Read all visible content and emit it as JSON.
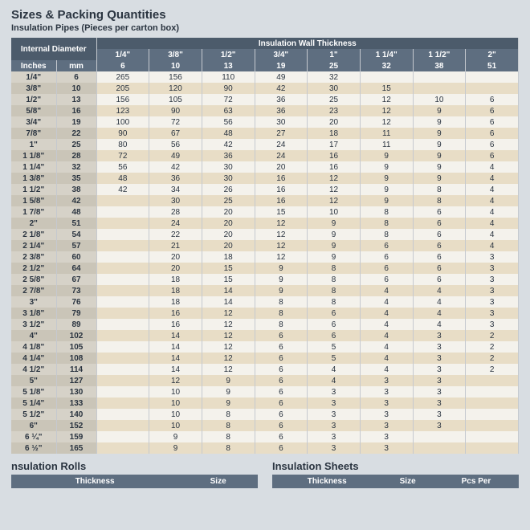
{
  "title": "Sizes & Packing Quantities",
  "subtitle": "Insulation Pipes (Pieces per carton box)",
  "colgroup1_label": "Internal Diameter",
  "colgroup2_label": "Insulation Wall Thickness",
  "sub_headers_left": [
    "Inches",
    "mm"
  ],
  "thickness_inches": [
    "1/4\"",
    "3/8\"",
    "1/2\"",
    "3/4\"",
    "1\"",
    "1 1/4\"",
    "1 1/2\"",
    "2\""
  ],
  "thickness_mm": [
    "6",
    "10",
    "13",
    "19",
    "25",
    "32",
    "38",
    "51"
  ],
  "rows": [
    {
      "in": "1/4\"",
      "mm": "6",
      "v": [
        "265",
        "156",
        "110",
        "49",
        "32",
        "",
        "",
        ""
      ]
    },
    {
      "in": "3/8\"",
      "mm": "10",
      "v": [
        "205",
        "120",
        "90",
        "42",
        "30",
        "15",
        "",
        ""
      ]
    },
    {
      "in": "1/2\"",
      "mm": "13",
      "v": [
        "156",
        "105",
        "72",
        "36",
        "25",
        "12",
        "10",
        "6"
      ]
    },
    {
      "in": "5/8\"",
      "mm": "16",
      "v": [
        "123",
        "90",
        "63",
        "36",
        "23",
        "12",
        "9",
        "6"
      ]
    },
    {
      "in": "3/4\"",
      "mm": "19",
      "v": [
        "100",
        "72",
        "56",
        "30",
        "20",
        "12",
        "9",
        "6"
      ]
    },
    {
      "in": "7/8\"",
      "mm": "22",
      "v": [
        "90",
        "67",
        "48",
        "27",
        "18",
        "11",
        "9",
        "6"
      ]
    },
    {
      "in": "1\"",
      "mm": "25",
      "v": [
        "80",
        "56",
        "42",
        "24",
        "17",
        "11",
        "9",
        "6"
      ]
    },
    {
      "in": "1 1/8\"",
      "mm": "28",
      "v": [
        "72",
        "49",
        "36",
        "24",
        "16",
        "9",
        "9",
        "6"
      ]
    },
    {
      "in": "1 1/4\"",
      "mm": "32",
      "v": [
        "56",
        "42",
        "30",
        "20",
        "16",
        "9",
        "9",
        "4"
      ]
    },
    {
      "in": "1 3/8\"",
      "mm": "35",
      "v": [
        "48",
        "36",
        "30",
        "16",
        "12",
        "9",
        "9",
        "4"
      ]
    },
    {
      "in": "1 1/2\"",
      "mm": "38",
      "v": [
        "42",
        "34",
        "26",
        "16",
        "12",
        "9",
        "8",
        "4"
      ]
    },
    {
      "in": "1 5/8\"",
      "mm": "42",
      "v": [
        "",
        "30",
        "25",
        "16",
        "12",
        "9",
        "8",
        "4"
      ]
    },
    {
      "in": "1 7/8\"",
      "mm": "48",
      "v": [
        "",
        "28",
        "20",
        "15",
        "10",
        "8",
        "6",
        "4"
      ]
    },
    {
      "in": "2\"",
      "mm": "51",
      "v": [
        "",
        "24",
        "20",
        "12",
        "9",
        "8",
        "6",
        "4"
      ]
    },
    {
      "in": "2 1/8\"",
      "mm": "54",
      "v": [
        "",
        "22",
        "20",
        "12",
        "9",
        "8",
        "6",
        "4"
      ]
    },
    {
      "in": "2 1/4\"",
      "mm": "57",
      "v": [
        "",
        "21",
        "20",
        "12",
        "9",
        "6",
        "6",
        "4"
      ]
    },
    {
      "in": "2 3/8\"",
      "mm": "60",
      "v": [
        "",
        "20",
        "18",
        "12",
        "9",
        "6",
        "6",
        "3"
      ]
    },
    {
      "in": "2 1/2\"",
      "mm": "64",
      "v": [
        "",
        "20",
        "15",
        "9",
        "8",
        "6",
        "6",
        "3"
      ]
    },
    {
      "in": "2 5/8\"",
      "mm": "67",
      "v": [
        "",
        "18",
        "15",
        "9",
        "8",
        "6",
        "6",
        "3"
      ]
    },
    {
      "in": "2 7/8\"",
      "mm": "73",
      "v": [
        "",
        "18",
        "14",
        "9",
        "8",
        "4",
        "4",
        "3"
      ]
    },
    {
      "in": "3\"",
      "mm": "76",
      "v": [
        "",
        "18",
        "14",
        "8",
        "8",
        "4",
        "4",
        "3"
      ]
    },
    {
      "in": "3 1/8\"",
      "mm": "79",
      "v": [
        "",
        "16",
        "12",
        "8",
        "6",
        "4",
        "4",
        "3"
      ]
    },
    {
      "in": "3 1/2\"",
      "mm": "89",
      "v": [
        "",
        "16",
        "12",
        "8",
        "6",
        "4",
        "4",
        "3"
      ]
    },
    {
      "in": "4\"",
      "mm": "102",
      "v": [
        "",
        "14",
        "12",
        "6",
        "6",
        "4",
        "3",
        "2"
      ]
    },
    {
      "in": "4 1/8\"",
      "mm": "105",
      "v": [
        "",
        "14",
        "12",
        "6",
        "5",
        "4",
        "3",
        "2"
      ]
    },
    {
      "in": "4 1/4\"",
      "mm": "108",
      "v": [
        "",
        "14",
        "12",
        "6",
        "5",
        "4",
        "3",
        "2"
      ]
    },
    {
      "in": "4 1/2\"",
      "mm": "114",
      "v": [
        "",
        "14",
        "12",
        "6",
        "4",
        "4",
        "3",
        "2"
      ]
    },
    {
      "in": "5\"",
      "mm": "127",
      "v": [
        "",
        "12",
        "9",
        "6",
        "4",
        "3",
        "3",
        ""
      ]
    },
    {
      "in": "5 1/8\"",
      "mm": "130",
      "v": [
        "",
        "10",
        "9",
        "6",
        "3",
        "3",
        "3",
        ""
      ]
    },
    {
      "in": "5 1/4\"",
      "mm": "133",
      "v": [
        "",
        "10",
        "9",
        "6",
        "3",
        "3",
        "3",
        ""
      ]
    },
    {
      "in": "5 1/2\"",
      "mm": "140",
      "v": [
        "",
        "10",
        "8",
        "6",
        "3",
        "3",
        "3",
        ""
      ]
    },
    {
      "in": "6\"",
      "mm": "152",
      "v": [
        "",
        "10",
        "8",
        "6",
        "3",
        "3",
        "3",
        ""
      ]
    },
    {
      "in": "6 ¼\"",
      "mm": "159",
      "v": [
        "",
        "9",
        "8",
        "6",
        "3",
        "3",
        "",
        ""
      ]
    },
    {
      "in": "6 ½\"",
      "mm": "165",
      "v": [
        "",
        "9",
        "8",
        "6",
        "3",
        "3",
        "",
        ""
      ]
    }
  ],
  "bottom_left_title": "nsulation Rolls",
  "bottom_left_cols": [
    "Thickness",
    "Size"
  ],
  "bottom_right_title": "Insulation Sheets",
  "bottom_right_cols": [
    "Thickness",
    "Size",
    "Pcs Per"
  ]
}
